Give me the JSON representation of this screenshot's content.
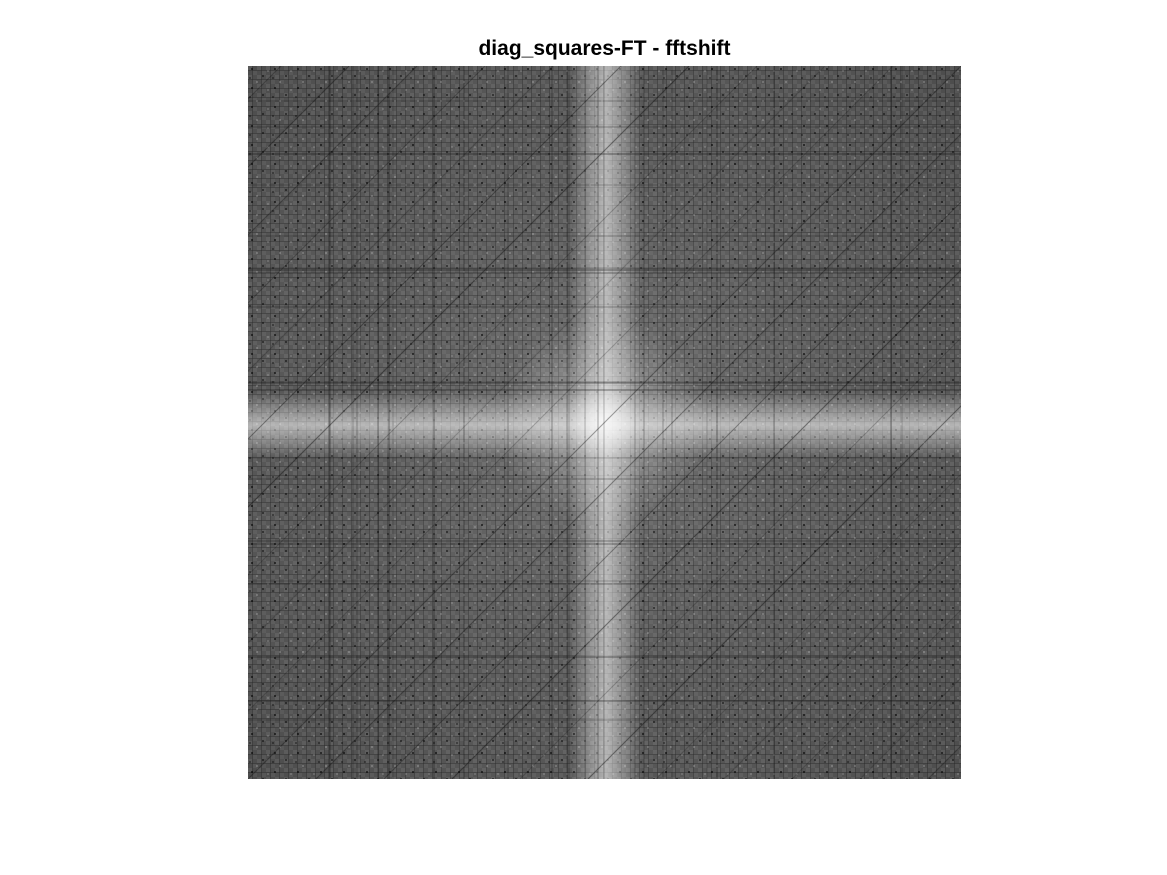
{
  "figure": {
    "title": "diag_squares-FT - fftshift"
  },
  "image": {
    "description_kind": "grayscale log-magnitude FFT spectrum (fftshift)",
    "colormap": "gray",
    "background_gray": "#555555",
    "center_gray": "#f2f2f2"
  }
}
